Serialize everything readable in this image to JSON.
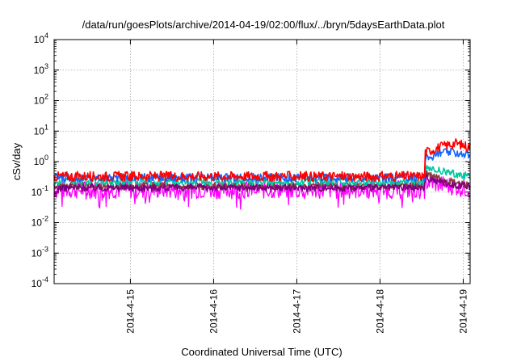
{
  "chart_data": {
    "type": "line",
    "title": "/data/run/goesPlots/archive/2014-04-19/02:00/flux/../bryn/5daysEarthData.plot",
    "xlabel": "Coordinated Universal Time (UTC)",
    "ylabel": "cSv/day",
    "y_scale": "log",
    "ylim": [
      0.0001,
      10000
    ],
    "y_ticks": [
      {
        "value": 0.0001,
        "base": "10",
        "exp": "-4"
      },
      {
        "value": 0.001,
        "base": "10",
        "exp": "-3"
      },
      {
        "value": 0.01,
        "base": "10",
        "exp": "-2"
      },
      {
        "value": 0.1,
        "base": "10",
        "exp": "-1"
      },
      {
        "value": 1,
        "base": "10",
        "exp": "0"
      },
      {
        "value": 10,
        "base": "10",
        "exp": "1"
      },
      {
        "value": 100,
        "base": "10",
        "exp": "2"
      },
      {
        "value": 1000,
        "base": "10",
        "exp": "3"
      },
      {
        "value": 10000,
        "base": "10",
        "exp": "4"
      }
    ],
    "xlim": [
      "2014-04-14T02:00",
      "2014-04-19T02:00"
    ],
    "x_ticks": [
      "2014-4-15",
      "2014-4-16",
      "2014-4-17",
      "2014-4-18",
      "2014-4-19"
    ],
    "grid": true,
    "legend": "none",
    "series": [
      {
        "color": "#ff00ff",
        "baseline": 0.12,
        "jitter": 0.3,
        "after_step": [
          0.22,
          0.18,
          0.15,
          0.12
        ]
      },
      {
        "color": "#8b3a3a",
        "baseline": 0.16,
        "jitter": 0.12,
        "after_step": [
          0.4,
          0.28,
          0.2,
          0.17
        ]
      },
      {
        "color": "#7f007f",
        "baseline": 0.14,
        "jitter": 0.12,
        "after_step": [
          0.3,
          0.22,
          0.17,
          0.15
        ]
      },
      {
        "color": "#00c8a0",
        "baseline": 0.22,
        "jitter": 0.12,
        "after_step": [
          0.6,
          0.5,
          0.4,
          0.33
        ]
      },
      {
        "color": "#1464ff",
        "baseline": 0.3,
        "jitter": 0.14,
        "after_step": [
          1.2,
          2.0,
          2.0,
          1.6
        ]
      },
      {
        "color": "#ff0000",
        "baseline": 0.33,
        "jitter": 0.16,
        "after_step": [
          2.0,
          3.0,
          4.0,
          3.0
        ]
      }
    ],
    "step_time": "2014-04-18T13:00"
  }
}
